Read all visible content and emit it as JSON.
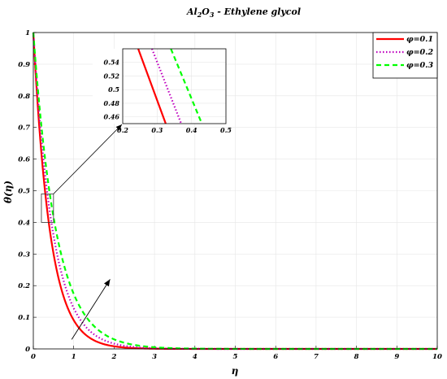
{
  "chart_data": {
    "type": "line",
    "title": {
      "base": "Al",
      "sub1": "2",
      "mid": "O",
      "sub2": "3",
      "rest": " - Ethylene glycol"
    },
    "xlabel": "η",
    "ylabel": "θ(η)",
    "xlim": [
      0,
      10
    ],
    "ylim": [
      0,
      1
    ],
    "xticks": [
      "0",
      "1",
      "2",
      "3",
      "4",
      "5",
      "6",
      "7",
      "8",
      "9",
      "10"
    ],
    "yticks": [
      "0",
      "0.1",
      "0.2",
      "0.3",
      "0.4",
      "0.5",
      "0.6",
      "0.7",
      "0.8",
      "0.9",
      "1"
    ],
    "grid": true,
    "legend_position": "top-right",
    "series": [
      {
        "name": "φ=0.1",
        "color": "#ff0000",
        "style": "solid",
        "decay_k": 2.4
      },
      {
        "name": "φ=0.2",
        "color": "#bf00bf",
        "style": "dotted",
        "decay_k": 2.05
      },
      {
        "name": "φ=0.3",
        "color": "#00ff00",
        "style": "dashed",
        "decay_k": 1.75
      }
    ],
    "inset": {
      "xlim": [
        0.2,
        0.5
      ],
      "ylim": [
        0.45,
        0.56
      ],
      "xticks": [
        "0.2",
        "0.3",
        "0.4",
        "0.5"
      ],
      "yticks": [
        "0.46",
        "0.48",
        "0.5",
        "0.52",
        "0.54"
      ],
      "zoom_region": {
        "x": [
          0.2,
          0.5
        ],
        "y": [
          0.4,
          0.49
        ]
      },
      "series_lines": [
        {
          "color": "#ff0000",
          "style": "solid",
          "x": [
            0.245,
            0.325
          ],
          "y": [
            0.56,
            0.45
          ]
        },
        {
          "color": "#bf00bf",
          "style": "dotted",
          "x": [
            0.285,
            0.37
          ],
          "y": [
            0.56,
            0.45
          ]
        },
        {
          "color": "#00ff00",
          "style": "dashed",
          "x": [
            0.34,
            0.43
          ],
          "y": [
            0.56,
            0.45
          ]
        }
      ]
    },
    "annotation": {
      "type": "arrow",
      "meaning": "increasing φ",
      "from": [
        0.95,
        0.03
      ],
      "to": [
        1.9,
        0.22
      ]
    }
  }
}
